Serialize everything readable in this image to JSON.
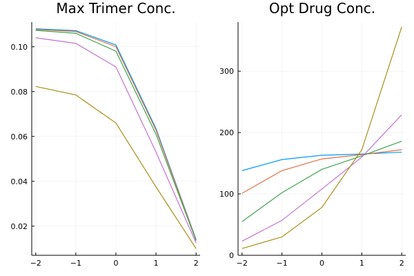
{
  "colors": [
    "#009AFA",
    "#E26F46",
    "#3EA44E",
    "#C271D2",
    "#AC8E18"
  ],
  "chart_data": [
    {
      "type": "line",
      "title": "Max Trimer Conc.",
      "xlabel": "",
      "ylabel": "",
      "x": [
        -2,
        -1,
        0,
        1,
        2
      ],
      "xticks": [
        -2,
        -1,
        0,
        1,
        2
      ],
      "xtick_labels": [
        "−2",
        "−1",
        "0",
        "1",
        "2"
      ],
      "yticks": [
        0.02,
        0.04,
        0.06,
        0.08,
        0.1
      ],
      "ytick_labels": [
        "0.02",
        "0.04",
        "0.06",
        "0.08",
        "0.10"
      ],
      "xlim": [
        -2.1,
        2.1
      ],
      "ylim": [
        0.007,
        0.111
      ],
      "grid": true,
      "legend": "none",
      "series": [
        {
          "values": [
            0.108,
            0.1072,
            0.1008,
            0.0635,
            0.014
          ]
        },
        {
          "values": [
            0.1077,
            0.1068,
            0.1,
            0.0628,
            0.0138
          ]
        },
        {
          "values": [
            0.1073,
            0.106,
            0.098,
            0.061,
            0.0135
          ]
        },
        {
          "values": [
            0.104,
            0.1015,
            0.091,
            0.053,
            0.0125
          ]
        },
        {
          "values": [
            0.0823,
            0.0785,
            0.066,
            0.0375,
            0.01
          ]
        }
      ]
    },
    {
      "type": "line",
      "title": "Opt Drug Conc.",
      "xlabel": "",
      "ylabel": "",
      "x": [
        -2,
        -1,
        0,
        1,
        2
      ],
      "xticks": [
        -2,
        -1,
        0,
        1,
        2
      ],
      "xtick_labels": [
        "−2",
        "−1",
        "0",
        "1",
        "2"
      ],
      "yticks": [
        0,
        100,
        200,
        300
      ],
      "ytick_labels": [
        "0",
        "100",
        "200",
        "300"
      ],
      "xlim": [
        -2.1,
        2.1
      ],
      "ylim": [
        0,
        380
      ],
      "grid": true,
      "legend": "none",
      "series": [
        {
          "values": [
            138,
            156,
            163,
            165,
            168
          ]
        },
        {
          "values": [
            101,
            138,
            157,
            164,
            172
          ]
        },
        {
          "values": [
            55,
            102,
            140,
            162,
            186
          ]
        },
        {
          "values": [
            23,
            57,
            108,
            160,
            229
          ]
        },
        {
          "values": [
            11,
            30,
            78,
            172,
            372
          ]
        }
      ]
    }
  ]
}
